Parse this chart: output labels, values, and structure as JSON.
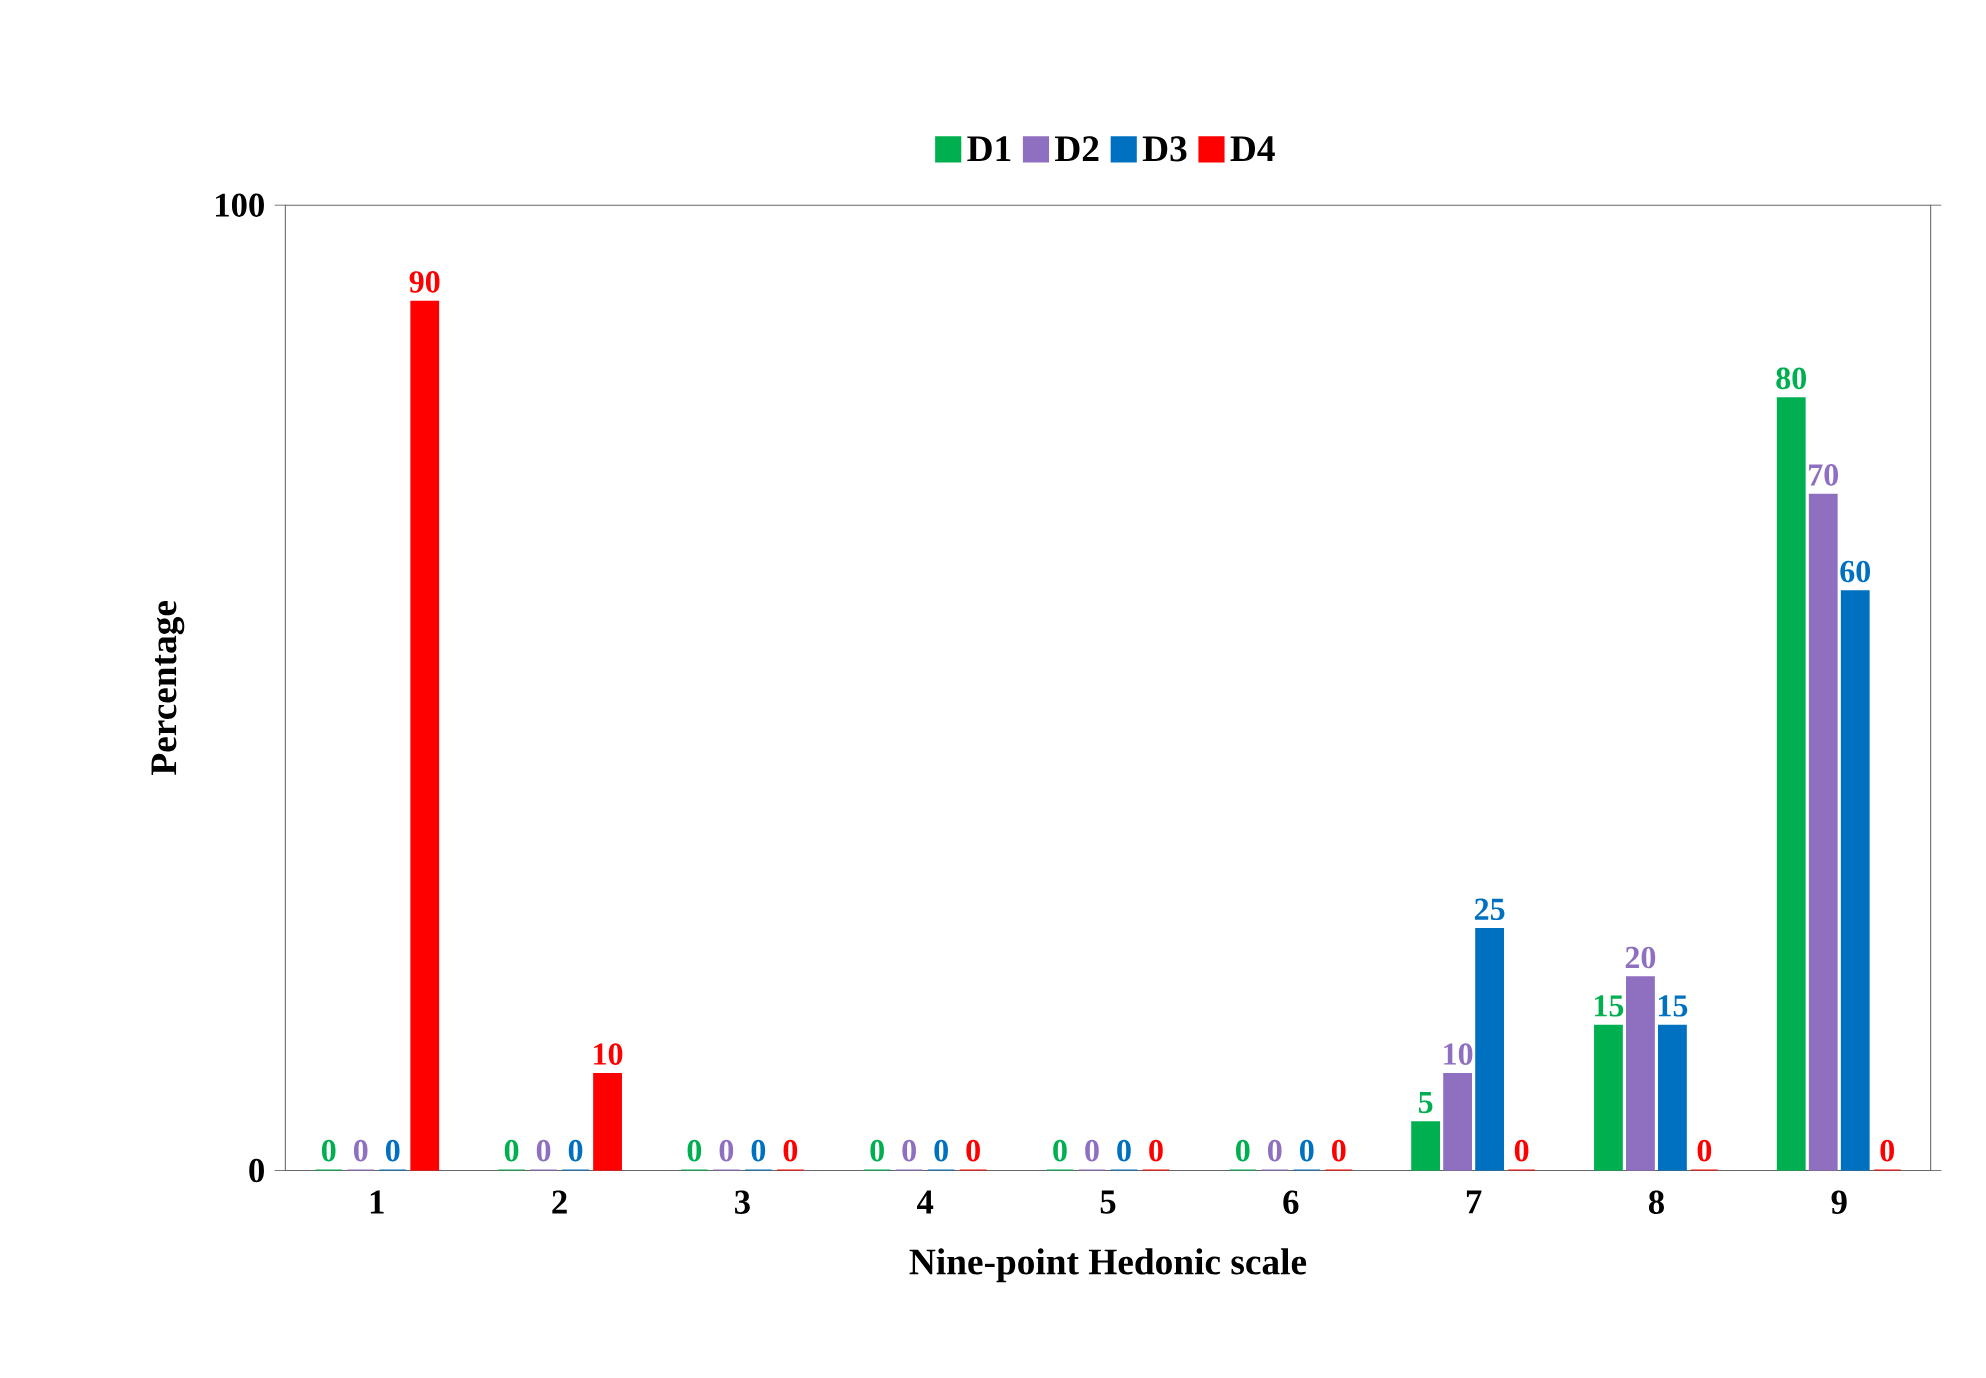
{
  "chart_data": {
    "type": "bar",
    "xlabel": "Nine-point Hedonic scale",
    "ylabel": "Percentage",
    "categories": [
      "1",
      "2",
      "3",
      "4",
      "5",
      "6",
      "7",
      "8",
      "9"
    ],
    "series": [
      {
        "name": "D1",
        "color": "#00b050",
        "values": [
          0,
          0,
          0,
          0,
          0,
          0,
          5,
          15,
          80
        ]
      },
      {
        "name": "D2",
        "color": "#8e6fc0",
        "values": [
          0,
          0,
          0,
          0,
          0,
          0,
          10,
          20,
          70
        ]
      },
      {
        "name": "D3",
        "color": "#0070c0",
        "values": [
          0,
          0,
          0,
          0,
          0,
          0,
          25,
          15,
          60
        ]
      },
      {
        "name": "D4",
        "color": "#ff0000",
        "values": [
          90,
          10,
          0,
          0,
          0,
          0,
          0,
          0,
          0
        ]
      }
    ],
    "ylim": [
      0,
      100
    ],
    "yticks": [
      0,
      100
    ],
    "data_labels": true,
    "legend": "top",
    "grid": false
  }
}
